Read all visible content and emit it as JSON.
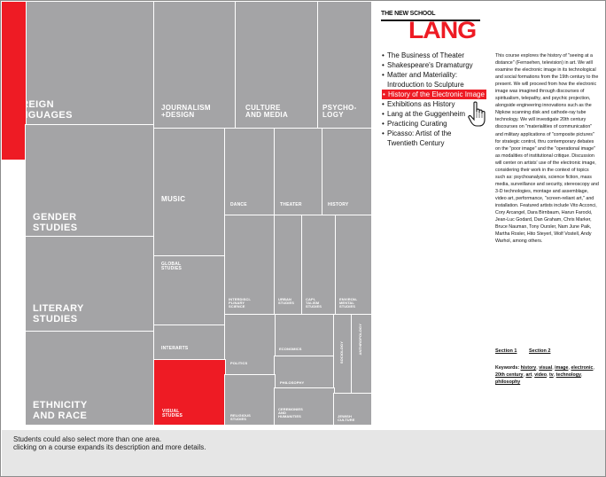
{
  "treemap": {
    "tiles": [
      {
        "key": "foreign-languages",
        "label": "Foreign\nLanguages",
        "active": false
      },
      {
        "key": "red-strip",
        "label": "",
        "active": true
      },
      {
        "key": "gender-studies",
        "label": "Gender\nStudies",
        "active": false
      },
      {
        "key": "literary-studies",
        "label": "Literary\nStudies",
        "active": false
      },
      {
        "key": "ethnicity-and-race",
        "label": "Ethnicity\nand Race",
        "active": false
      },
      {
        "key": "journalism-design",
        "label": "Journalism\n+Design",
        "active": false
      },
      {
        "key": "culture-and-media",
        "label": "Culture\nand Media",
        "active": false
      },
      {
        "key": "psychology",
        "label": "Psycho-\nlogy",
        "active": false
      },
      {
        "key": "music",
        "label": "Music",
        "active": false
      },
      {
        "key": "dance",
        "label": "Dance",
        "active": false
      },
      {
        "key": "theater",
        "label": "Theater",
        "active": false
      },
      {
        "key": "history",
        "label": "History",
        "active": false
      },
      {
        "key": "global-studies",
        "label": "Global\nStudies",
        "active": false
      },
      {
        "key": "interdisciplinary-science",
        "label": "Interdisci-\nplinary\nScience",
        "active": false
      },
      {
        "key": "urban-studies",
        "label": "Urban\nStudies",
        "active": false
      },
      {
        "key": "capitalism-studies",
        "label": "Capi-\ntalism\nStudies",
        "active": false
      },
      {
        "key": "environmental-studies",
        "label": "Environ-\nmental\nStudies",
        "active": false
      },
      {
        "key": "interarts",
        "label": "Interarts",
        "active": false
      },
      {
        "key": "economics",
        "label": "Economics",
        "active": false
      },
      {
        "key": "politics",
        "label": "Politics",
        "active": false
      },
      {
        "key": "philosophy",
        "label": "Philosophy",
        "active": false
      },
      {
        "key": "sociology",
        "label": "Sociology",
        "active": false
      },
      {
        "key": "anthropology",
        "label": "Anthropology",
        "active": false
      },
      {
        "key": "visual-studies",
        "label": "Visual\nStudies",
        "active": true
      },
      {
        "key": "religious-studies",
        "label": "Religious\nStudies",
        "active": false
      },
      {
        "key": "ceremonies-and-humanities",
        "label": "Ceremonies\nand\nHumanities",
        "active": false
      },
      {
        "key": "jewish-culture",
        "label": "Jewish\nCulture",
        "active": false
      }
    ]
  },
  "logo": {
    "school": "THE NEW SCHOOL",
    "name": "LANG"
  },
  "courses": [
    {
      "label": "The Business of Theater",
      "selected": false
    },
    {
      "label": "Shakespeare's Dramaturgy",
      "selected": false
    },
    {
      "label": "Matter and Materiality:\nIntroduction to Sculpture",
      "selected": false
    },
    {
      "label": "History of the Electronic Image",
      "selected": true
    },
    {
      "label": "Exhibitions as History",
      "selected": false
    },
    {
      "label": "Lang at the Guggenheim",
      "selected": false
    },
    {
      "label": "Practicing Curating",
      "selected": false
    },
    {
      "label": "Picasso: Artist of the\nTwentieth Century",
      "selected": false
    }
  ],
  "bullet": "•",
  "description": "This course explores the history of \"seeing at a distance\" (Fernsehen, television) in art. We will examine the electronic image in its technological and social formations from the 19th century to the present. We will proceed from how the electronic image was imagined through discourses of spiritualism, telepathy, and psychic projection, alongside engineering innovations such as the Nipkow scanning disk and cathode-ray tube technology. We will investigate 20th century discourses on \"materialities of communication\" and military applications of \"composite pictures\" for strategic control, thru contemporary debates on the \"poor image\" and the \"operational image\" as modalities of institutional critique. Discussion will center on artists' use of the electronic image, considering their work in the context of topics such as: psychoanalysis, science fiction, mass media, surveillance and security, stereoscopy and 3-D technologies, montage and assemblage, video art, performance, \"screen-reliant art,\" and installation. Featured artists include Vito Acconci, Cory Arcangel, Dara Birnbaum, Harun Farocki, Jean-Luc Godard, Dan Graham, Chris Marker, Bruce Nauman, Tony Oursler, Nam June Paik, Martha Rosler, Hito Steyerl, Wolf Vostell, Andy Warhol, among others.",
  "sections": {
    "s1": "Section 1",
    "s2": "Section 2"
  },
  "keywords": {
    "label": "Keywords: ",
    "items": [
      "history",
      "visual",
      "image",
      "electronic",
      "20th century",
      "art",
      "video",
      "tv",
      "technology",
      "philosophy"
    ]
  },
  "footer": {
    "line1": "Students could also select more than one area.",
    "line2": "clicking on a course expands its description and more details."
  },
  "colors": {
    "accent": "#ee1b24",
    "tile": "#a4a4a6",
    "footer": "#e6e6e6"
  }
}
